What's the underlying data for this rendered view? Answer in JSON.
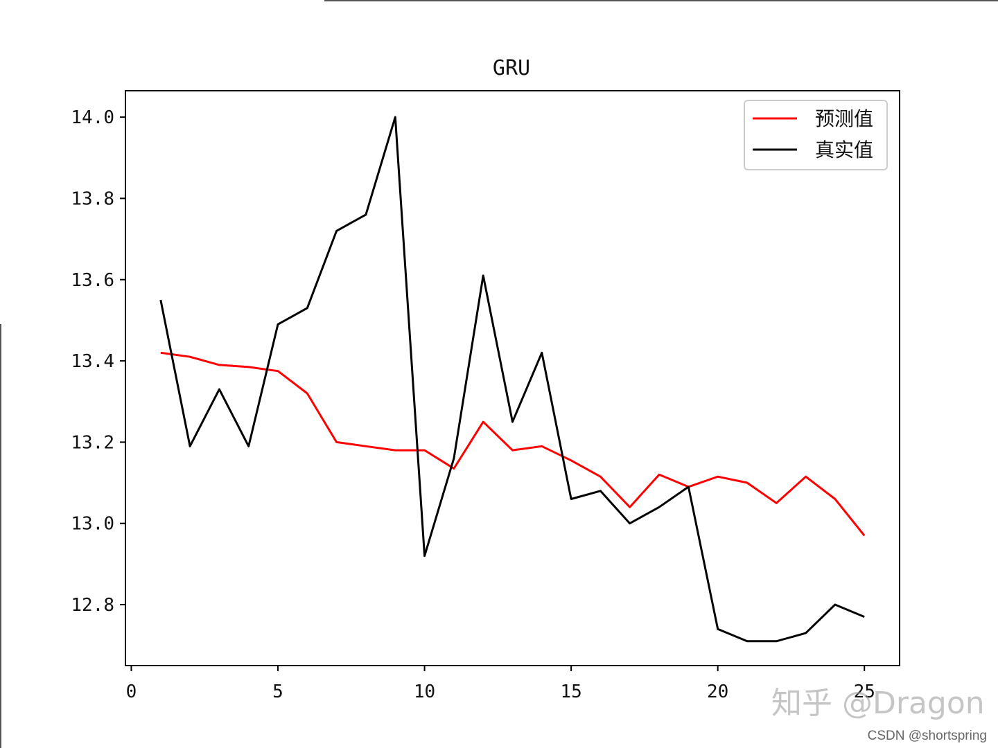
{
  "chart_data": {
    "type": "line",
    "title": "GRU",
    "xlabel": "",
    "ylabel": "",
    "xlim": [
      -0.2,
      26.2
    ],
    "ylim": [
      12.65,
      14.065
    ],
    "x_ticks": [
      0,
      5,
      10,
      15,
      20,
      25
    ],
    "x_tick_labels": [
      "0",
      "5",
      "10",
      "15",
      "20",
      "25"
    ],
    "y_ticks": [
      12.8,
      13.0,
      13.2,
      13.4,
      13.6,
      13.8,
      14.0
    ],
    "y_tick_labels": [
      "12.8",
      "13.0",
      "13.2",
      "13.4",
      "13.6",
      "13.8",
      "14.0"
    ],
    "grid": false,
    "legend_position": "top-right",
    "x": [
      1,
      2,
      3,
      4,
      5,
      6,
      7,
      8,
      9,
      10,
      11,
      12,
      13,
      14,
      15,
      16,
      17,
      18,
      19,
      20,
      21,
      22,
      23,
      24,
      25
    ],
    "series": [
      {
        "name": "预测值",
        "color": "#ff0000",
        "values": [
          13.42,
          13.41,
          13.39,
          13.385,
          13.375,
          13.32,
          13.2,
          13.19,
          13.18,
          13.18,
          13.135,
          13.25,
          13.18,
          13.19,
          13.155,
          13.115,
          13.04,
          13.12,
          13.09,
          13.115,
          13.1,
          13.05,
          13.115,
          13.06,
          12.97
        ]
      },
      {
        "name": "真实值",
        "color": "#000000",
        "values": [
          13.55,
          13.19,
          13.33,
          13.19,
          13.49,
          13.53,
          13.72,
          13.76,
          14.0,
          12.92,
          13.16,
          13.61,
          13.25,
          13.42,
          13.06,
          13.08,
          13.0,
          13.04,
          13.09,
          12.74,
          12.71,
          12.71,
          12.73,
          12.8,
          12.77
        ]
      }
    ]
  },
  "watermarks": {
    "zhihu": "知乎 @Dragon",
    "csdn": "CSDN @shortspring"
  }
}
